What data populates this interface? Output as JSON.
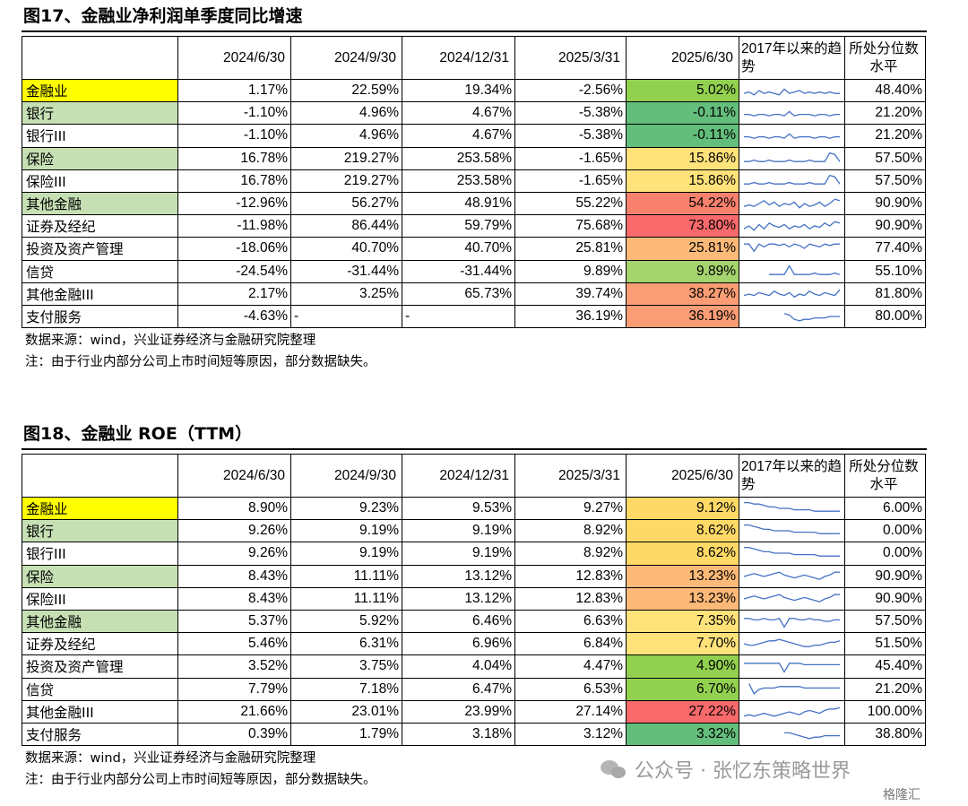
{
  "fig17": {
    "title": "图17、金融业净利润单季度同比增速",
    "headers": [
      "",
      "2024/6/30",
      "2024/9/30",
      "2024/12/31",
      "2025/3/31",
      "2025/6/30",
      "2017年以来的趋势",
      "所处分位数水平"
    ],
    "rows": [
      {
        "name": "金融业",
        "v": [
          "1.17%",
          "22.59%",
          "19.34%",
          "-2.56%",
          "5.02%"
        ],
        "pct": "48.40%",
        "name_bg": "#ffff00",
        "cell_bg": "#92d050",
        "spark": [
          3,
          4,
          2,
          5,
          3,
          4,
          3,
          2,
          6,
          3,
          4,
          5,
          3,
          4,
          3,
          4,
          3,
          4,
          3,
          3
        ]
      },
      {
        "name": "银行",
        "v": [
          "-1.10%",
          "4.96%",
          "4.67%",
          "-5.38%",
          "-0.11%"
        ],
        "pct": "21.20%",
        "name_bg": "#c6e0b4",
        "cell_bg": "#63be7b",
        "spark": [
          4,
          4,
          3,
          4,
          4,
          3,
          4,
          4,
          3,
          6,
          3,
          4,
          4,
          4,
          3,
          4,
          4,
          3,
          4,
          4
        ]
      },
      {
        "name": "银行III",
        "v": [
          "-1.10%",
          "4.96%",
          "4.67%",
          "-5.38%",
          "-0.11%"
        ],
        "pct": "21.20%",
        "name_bg": "",
        "cell_bg": "#63be7b",
        "spark": [
          4,
          4,
          3,
          4,
          4,
          3,
          4,
          4,
          3,
          6,
          3,
          4,
          4,
          4,
          3,
          4,
          4,
          3,
          4,
          4
        ]
      },
      {
        "name": "保险",
        "v": [
          "16.78%",
          "219.27%",
          "253.58%",
          "-1.65%",
          "15.86%"
        ],
        "pct": "57.50%",
        "name_bg": "#c6e0b4",
        "cell_bg": "#ffe27a",
        "spark": [
          3,
          3,
          4,
          3,
          3,
          4,
          3,
          3,
          3,
          4,
          3,
          3,
          3,
          4,
          3,
          3,
          3,
          9,
          8,
          3
        ]
      },
      {
        "name": "保险III",
        "v": [
          "16.78%",
          "219.27%",
          "253.58%",
          "-1.65%",
          "15.86%"
        ],
        "pct": "57.50%",
        "name_bg": "",
        "cell_bg": "#ffe27a",
        "spark": [
          3,
          3,
          4,
          3,
          3,
          4,
          3,
          3,
          3,
          4,
          3,
          3,
          3,
          4,
          3,
          3,
          3,
          9,
          8,
          3
        ]
      },
      {
        "name": "其他金融",
        "v": [
          "-12.96%",
          "56.27%",
          "48.91%",
          "55.22%",
          "54.22%"
        ],
        "pct": "90.90%",
        "name_bg": "#c6e0b4",
        "cell_bg": "#f8816e",
        "spark": [
          3,
          4,
          3,
          5,
          7,
          4,
          6,
          3,
          5,
          4,
          6,
          2,
          5,
          3,
          4,
          6,
          3,
          5,
          8,
          7
        ]
      },
      {
        "name": "证券及经纪",
        "v": [
          "-11.98%",
          "86.44%",
          "59.79%",
          "75.68%",
          "73.80%"
        ],
        "pct": "90.90%",
        "name_bg": "",
        "cell_bg": "#f8696b",
        "spark": [
          3,
          5,
          2,
          6,
          3,
          7,
          5,
          4,
          6,
          3,
          5,
          4,
          6,
          3,
          5,
          4,
          7,
          5,
          8,
          7
        ]
      },
      {
        "name": "投资及资产管理",
        "v": [
          "-18.06%",
          "40.70%",
          "40.70%",
          "25.81%",
          "25.81%"
        ],
        "pct": "77.40%",
        "name_bg": "",
        "cell_bg": "#fcb977",
        "spark": [
          8,
          8,
          3,
          8,
          6,
          8,
          8,
          7,
          8,
          6,
          8,
          7,
          5,
          8,
          7,
          6,
          8,
          7,
          8,
          8
        ]
      },
      {
        "name": "信贷",
        "v": [
          "-24.54%",
          "-31.44%",
          "-31.44%",
          "9.89%",
          "9.89%"
        ],
        "pct": "55.10%",
        "name_bg": "",
        "cell_bg": "#a5d36e",
        "spark": [
          null,
          null,
          null,
          null,
          null,
          3,
          3,
          3,
          3,
          9,
          3,
          3,
          3,
          3,
          4,
          3,
          3,
          3,
          4,
          3
        ]
      },
      {
        "name": "其他金融III",
        "v": [
          "2.17%",
          "3.25%",
          "65.73%",
          "39.74%",
          "38.27%"
        ],
        "pct": "81.80%",
        "name_bg": "",
        "cell_bg": "#fa9d75",
        "spark": [
          4,
          5,
          4,
          6,
          5,
          4,
          7,
          5,
          4,
          6,
          3,
          5,
          4,
          7,
          5,
          4,
          6,
          5,
          4,
          8
        ]
      },
      {
        "name": "支付服务",
        "v": [
          "-4.63%",
          "-",
          "-",
          "36.19%",
          "36.19%"
        ],
        "pct": "80.00%",
        "name_bg": "",
        "cell_bg": "#fa9d75",
        "dash_cols": [
          1,
          2
        ],
        "spark": [
          null,
          null,
          null,
          null,
          null,
          null,
          null,
          null,
          7,
          6,
          3,
          2,
          3,
          3,
          4,
          4,
          4,
          5,
          5,
          5
        ]
      }
    ],
    "notes": [
      "数据来源：wind，兴业证券经济与金融研究院整理",
      "注：由于行业内部分公司上市时间短等原因，部分数据缺失。"
    ]
  },
  "fig18": {
    "title": "图18、金融业 ROE（TTM）",
    "headers": [
      "",
      "2024/6/30",
      "2024/9/30",
      "2024/12/31",
      "2025/3/31",
      "2025/6/30",
      "2017年以来的趋势",
      "所处分位数水平"
    ],
    "rows": [
      {
        "name": "金融业",
        "v": [
          "8.90%",
          "9.23%",
          "9.53%",
          "9.27%",
          "9.12%"
        ],
        "pct": "6.00%",
        "name_bg": "#ffff00",
        "cell_bg": "#ffd966",
        "spark": [
          9,
          9,
          8,
          8,
          7,
          6,
          6,
          5,
          5,
          5,
          4,
          4,
          4,
          4,
          3,
          3,
          3,
          3,
          3,
          3
        ]
      },
      {
        "name": "银行",
        "v": [
          "9.26%",
          "9.19%",
          "9.19%",
          "8.92%",
          "8.62%"
        ],
        "pct": "0.00%",
        "name_bg": "#c6e0b4",
        "cell_bg": "#ffd966",
        "spark": [
          9,
          9,
          8,
          7,
          6,
          6,
          5,
          5,
          5,
          5,
          4,
          4,
          4,
          4,
          4,
          3,
          3,
          3,
          3,
          3
        ]
      },
      {
        "name": "银行III",
        "v": [
          "9.26%",
          "9.19%",
          "9.19%",
          "8.92%",
          "8.62%"
        ],
        "pct": "0.00%",
        "name_bg": "",
        "cell_bg": "#ffd966",
        "spark": [
          9,
          9,
          8,
          7,
          6,
          6,
          5,
          5,
          5,
          5,
          4,
          4,
          4,
          4,
          4,
          3,
          3,
          3,
          3,
          3
        ]
      },
      {
        "name": "保险",
        "v": [
          "8.43%",
          "11.11%",
          "13.12%",
          "12.83%",
          "13.23%"
        ],
        "pct": "90.90%",
        "name_bg": "#c6e0b4",
        "cell_bg": "#fcb977",
        "spark": [
          5,
          6,
          7,
          6,
          5,
          6,
          7,
          8,
          6,
          5,
          4,
          5,
          6,
          5,
          4,
          3,
          5,
          6,
          8,
          8
        ]
      },
      {
        "name": "保险III",
        "v": [
          "8.43%",
          "11.11%",
          "13.12%",
          "12.83%",
          "13.23%"
        ],
        "pct": "90.90%",
        "name_bg": "",
        "cell_bg": "#fcb977",
        "spark": [
          5,
          6,
          7,
          6,
          5,
          6,
          7,
          8,
          6,
          5,
          4,
          5,
          6,
          5,
          4,
          3,
          5,
          6,
          8,
          8
        ]
      },
      {
        "name": "其他金融",
        "v": [
          "5.37%",
          "5.92%",
          "6.46%",
          "6.63%",
          "7.35%"
        ],
        "pct": "57.50%",
        "name_bg": "#c6e0b4",
        "cell_bg": "#ffe27a",
        "spark": [
          7,
          7,
          6,
          6,
          7,
          6,
          6,
          7,
          1,
          7,
          7,
          6,
          6,
          7,
          6,
          6,
          5,
          5,
          6,
          6
        ]
      },
      {
        "name": "证券及经纪",
        "v": [
          "5.46%",
          "6.31%",
          "6.96%",
          "6.84%",
          "7.70%"
        ],
        "pct": "51.50%",
        "name_bg": "",
        "cell_bg": "#ffe27a",
        "spark": [
          5,
          4,
          4,
          5,
          6,
          7,
          7,
          8,
          7,
          6,
          5,
          4,
          3,
          3,
          4,
          4,
          5,
          6,
          6,
          7
        ]
      },
      {
        "name": "投资及资产管理",
        "v": [
          "3.52%",
          "3.75%",
          "4.04%",
          "4.47%",
          "4.90%"
        ],
        "pct": "45.40%",
        "name_bg": "",
        "cell_bg": "#92d050",
        "spark": [
          7,
          7,
          7,
          7,
          7,
          7,
          7,
          7,
          1,
          7,
          7,
          7,
          6,
          6,
          6,
          6,
          6,
          6,
          6,
          6
        ]
      },
      {
        "name": "信贷",
        "v": [
          "7.79%",
          "7.18%",
          "6.47%",
          "6.53%",
          "6.70%"
        ],
        "pct": "21.20%",
        "name_bg": "",
        "cell_bg": "#92d050",
        "spark": [
          null,
          9,
          2,
          5,
          6,
          6,
          6,
          7,
          7,
          7,
          7,
          7,
          6,
          6,
          6,
          6,
          6,
          6,
          6,
          6
        ]
      },
      {
        "name": "其他金融III",
        "v": [
          "21.66%",
          "23.01%",
          "23.99%",
          "27.14%",
          "27.22%"
        ],
        "pct": "100.00%",
        "name_bg": "",
        "cell_bg": "#f8696b",
        "spark": [
          2,
          3,
          2,
          3,
          4,
          3,
          2,
          3,
          4,
          5,
          4,
          3,
          5,
          6,
          5,
          4,
          6,
          7,
          7,
          8
        ]
      },
      {
        "name": "支付服务",
        "v": [
          "0.39%",
          "1.79%",
          "3.18%",
          "3.12%",
          "3.32%"
        ],
        "pct": "38.80%",
        "name_bg": "",
        "cell_bg": "#63be7b",
        "spark": [
          null,
          null,
          null,
          null,
          null,
          null,
          null,
          null,
          6,
          6,
          5,
          4,
          3,
          2,
          3,
          3,
          4,
          4,
          4,
          4
        ]
      }
    ],
    "notes": [
      "数据来源：wind，兴业证券经济与金融研究院整理",
      "注：由于行业内部分公司上市时间短等原因，部分数据缺失。"
    ]
  },
  "watermark": "公众号 · 张忆东策略世界",
  "logo": "格隆汇",
  "spark_color": "#4472c4"
}
